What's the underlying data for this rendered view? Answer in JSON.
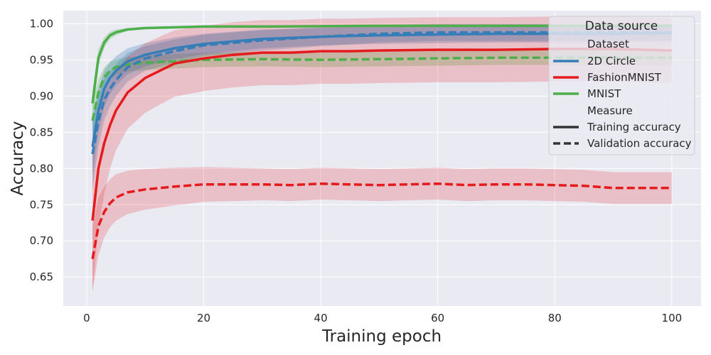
{
  "chart_data": {
    "type": "line",
    "title": "",
    "xlabel": "Training epoch",
    "ylabel": "Accuracy",
    "xlim": [
      -4,
      105
    ],
    "ylim": [
      0.61,
      1.018
    ],
    "xticks": [
      0,
      20,
      40,
      60,
      80,
      100
    ],
    "xtick_labels": [
      "0",
      "20",
      "40",
      "60",
      "80",
      "100"
    ],
    "yticks": [
      0.65,
      0.7,
      0.75,
      0.8,
      0.85,
      0.9,
      0.95,
      1.0
    ],
    "ytick_labels": [
      "0.65",
      "0.70",
      "0.75",
      "0.80",
      "0.85",
      "0.90",
      "0.95",
      "1.00"
    ],
    "grid": true,
    "legend": {
      "placement": "top-right",
      "title": "Data source",
      "dataset_header": "Dataset",
      "measure_header": "Measure",
      "entries": [
        {
          "label": "2D Circle",
          "color": "#377eb8",
          "style": "solid"
        },
        {
          "label": "FashionMNIST",
          "color": "#e41a1c",
          "style": "solid"
        },
        {
          "label": "MNIST",
          "color": "#4daf4a",
          "style": "solid"
        },
        {
          "label": "Training accuracy",
          "color": "#333333",
          "style": "solid"
        },
        {
          "label": "Validation accuracy",
          "color": "#333333",
          "style": "dashed"
        }
      ]
    },
    "series": [
      {
        "name": "MNIST",
        "measure": "Training accuracy",
        "color": "#4daf4a",
        "dash": false,
        "band_opacity": 0.28,
        "points": [
          [
            1,
            0.89
          ],
          [
            2,
            0.953
          ],
          [
            3,
            0.974
          ],
          [
            4,
            0.984
          ],
          [
            5,
            0.988
          ],
          [
            7,
            0.992
          ],
          [
            10,
            0.994
          ],
          [
            15,
            0.995
          ],
          [
            20,
            0.996
          ],
          [
            30,
            0.996
          ],
          [
            50,
            0.997
          ],
          [
            70,
            0.997
          ],
          [
            100,
            0.997
          ]
        ],
        "band": [
          0.018,
          0.012,
          0.007,
          0.005,
          0.004,
          0.002,
          0.001,
          0.001,
          0.001,
          0.001,
          0.001,
          0.001,
          0.001
        ]
      },
      {
        "name": "MNIST",
        "measure": "Validation accuracy",
        "color": "#4daf4a",
        "dash": true,
        "band_opacity": 0.28,
        "points": [
          [
            1,
            0.866
          ],
          [
            2,
            0.905
          ],
          [
            3,
            0.926
          ],
          [
            4,
            0.935
          ],
          [
            5,
            0.94
          ],
          [
            7,
            0.944
          ],
          [
            10,
            0.946
          ],
          [
            15,
            0.948
          ],
          [
            20,
            0.95
          ],
          [
            30,
            0.951
          ],
          [
            40,
            0.95
          ],
          [
            50,
            0.951
          ],
          [
            60,
            0.952
          ],
          [
            70,
            0.953
          ],
          [
            80,
            0.953
          ],
          [
            90,
            0.953
          ],
          [
            100,
            0.953
          ]
        ],
        "band": [
          0.025,
          0.018,
          0.014,
          0.012,
          0.011,
          0.01,
          0.01,
          0.01,
          0.01,
          0.01,
          0.01,
          0.01,
          0.01,
          0.01,
          0.01,
          0.01,
          0.01
        ]
      },
      {
        "name": "2D Circle",
        "measure": "Training accuracy",
        "color": "#377eb8",
        "dash": false,
        "band_opacity": 0.28,
        "points": [
          [
            1,
            0.83
          ],
          [
            2,
            0.88
          ],
          [
            3,
            0.91
          ],
          [
            4,
            0.925
          ],
          [
            5,
            0.935
          ],
          [
            7,
            0.948
          ],
          [
            10,
            0.957
          ],
          [
            15,
            0.966
          ],
          [
            20,
            0.972
          ],
          [
            30,
            0.979
          ],
          [
            40,
            0.982
          ],
          [
            50,
            0.984
          ],
          [
            60,
            0.985
          ],
          [
            70,
            0.986
          ],
          [
            80,
            0.986
          ],
          [
            90,
            0.986
          ],
          [
            100,
            0.987
          ]
        ],
        "band": [
          0.04,
          0.03,
          0.025,
          0.022,
          0.02,
          0.018,
          0.016,
          0.015,
          0.014,
          0.013,
          0.012,
          0.012,
          0.012,
          0.012,
          0.012,
          0.012,
          0.012
        ]
      },
      {
        "name": "2D Circle",
        "measure": "Validation accuracy",
        "color": "#377eb8",
        "dash": true,
        "band_opacity": 0.28,
        "points": [
          [
            1,
            0.82
          ],
          [
            2,
            0.865
          ],
          [
            3,
            0.895
          ],
          [
            4,
            0.91
          ],
          [
            5,
            0.922
          ],
          [
            7,
            0.94
          ],
          [
            10,
            0.952
          ],
          [
            15,
            0.962
          ],
          [
            20,
            0.97
          ],
          [
            30,
            0.977
          ],
          [
            40,
            0.982
          ],
          [
            50,
            0.986
          ],
          [
            60,
            0.988
          ],
          [
            70,
            0.988
          ],
          [
            80,
            0.988
          ],
          [
            90,
            0.988
          ],
          [
            100,
            0.988
          ]
        ],
        "band": [
          0.05,
          0.035,
          0.028,
          0.024,
          0.022,
          0.02,
          0.017,
          0.016,
          0.015,
          0.014,
          0.013,
          0.012,
          0.012,
          0.012,
          0.012,
          0.012,
          0.012
        ]
      },
      {
        "name": "FashionMNIST",
        "measure": "Training accuracy",
        "color": "#e41a1c",
        "dash": false,
        "band_opacity": 0.2,
        "points": [
          [
            1,
            0.728
          ],
          [
            2,
            0.8
          ],
          [
            3,
            0.835
          ],
          [
            4,
            0.86
          ],
          [
            5,
            0.88
          ],
          [
            7,
            0.905
          ],
          [
            10,
            0.925
          ],
          [
            15,
            0.945
          ],
          [
            20,
            0.952
          ],
          [
            25,
            0.957
          ],
          [
            30,
            0.96
          ],
          [
            35,
            0.96
          ],
          [
            40,
            0.962
          ],
          [
            45,
            0.962
          ],
          [
            50,
            0.963
          ],
          [
            60,
            0.964
          ],
          [
            70,
            0.964
          ],
          [
            80,
            0.965
          ],
          [
            90,
            0.965
          ],
          [
            100,
            0.963
          ]
        ],
        "band": [
          0.1,
          0.08,
          0.07,
          0.06,
          0.055,
          0.05,
          0.048,
          0.046,
          0.045,
          0.045,
          0.045,
          0.045,
          0.045,
          0.045,
          0.045,
          0.045,
          0.045,
          0.045,
          0.045,
          0.045
        ]
      },
      {
        "name": "FashionMNIST",
        "measure": "Validation accuracy",
        "color": "#e41a1c",
        "dash": true,
        "band_opacity": 0.2,
        "points": [
          [
            1,
            0.675
          ],
          [
            2,
            0.72
          ],
          [
            3,
            0.74
          ],
          [
            4,
            0.752
          ],
          [
            5,
            0.76
          ],
          [
            7,
            0.767
          ],
          [
            10,
            0.771
          ],
          [
            15,
            0.775
          ],
          [
            20,
            0.778
          ],
          [
            25,
            0.778
          ],
          [
            30,
            0.778
          ],
          [
            35,
            0.777
          ],
          [
            40,
            0.779
          ],
          [
            45,
            0.778
          ],
          [
            50,
            0.777
          ],
          [
            55,
            0.778
          ],
          [
            60,
            0.779
          ],
          [
            65,
            0.777
          ],
          [
            70,
            0.778
          ],
          [
            75,
            0.778
          ],
          [
            80,
            0.777
          ],
          [
            85,
            0.776
          ],
          [
            90,
            0.773
          ],
          [
            95,
            0.773
          ],
          [
            100,
            0.773
          ]
        ],
        "band": [
          0.045,
          0.04,
          0.035,
          0.033,
          0.032,
          0.03,
          0.028,
          0.026,
          0.024,
          0.023,
          0.022,
          0.022,
          0.022,
          0.022,
          0.022,
          0.022,
          0.022,
          0.022,
          0.022,
          0.022,
          0.022,
          0.022,
          0.022,
          0.022,
          0.022
        ]
      }
    ]
  }
}
